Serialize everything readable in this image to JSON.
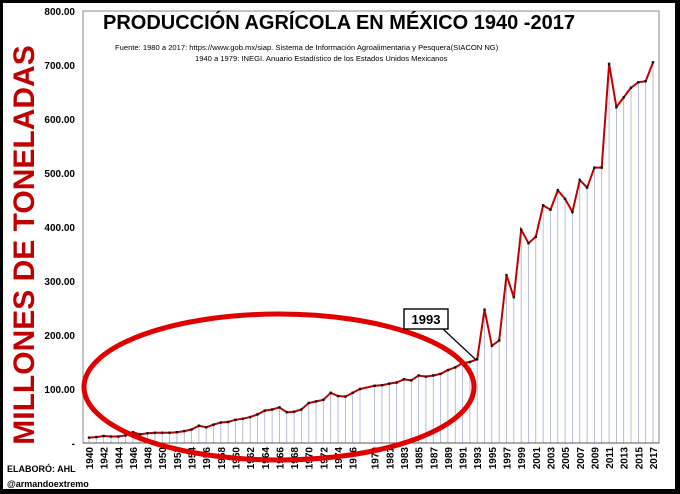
{
  "chart_data": {
    "type": "line",
    "title": "PRODUCCIÓN AGRÍCOLA EN MÉXICO 1940 -2017",
    "source_line1": "Fuente:  1980 a 2017: https://www.gob.mx/siap.  Sistema de Información Agroalimentaria y Pesquera(SIACON NG)",
    "source_line2": "1940 a 1979: INEGI. Anuario Estadístico de los Estados Unidos Mexicanos",
    "ylabel": "MILLONES DE TONELADAS",
    "xlabel": "",
    "ylim": [
      0,
      800
    ],
    "ytick_labels": [
      "-",
      "100.00",
      "200.00",
      "300.00",
      "400.00",
      "500.00",
      "600.00",
      "700.00",
      "800.00"
    ],
    "xtick_labels": [
      "1940",
      "1942",
      "1944",
      "1946",
      "1948",
      "1950",
      "1952",
      "1954",
      "1956",
      "1958",
      "1960",
      "1962",
      "1964",
      "1966",
      "1968",
      "1970",
      "1972",
      "1974",
      "1976",
      "1979",
      "1981",
      "1983",
      "1985",
      "1987",
      "1989",
      "1991",
      "1993",
      "1995",
      "1997",
      "1999",
      "2001",
      "2003",
      "2005",
      "2007",
      "2009",
      "2011",
      "2013",
      "2015",
      "2017"
    ],
    "series": [
      {
        "name": "Producción agrícola",
        "color": "#c00000",
        "x": [
          1940,
          1941,
          1942,
          1943,
          1944,
          1945,
          1946,
          1947,
          1948,
          1949,
          1950,
          1951,
          1952,
          1953,
          1954,
          1955,
          1956,
          1957,
          1958,
          1959,
          1960,
          1961,
          1962,
          1963,
          1964,
          1965,
          1966,
          1967,
          1968,
          1969,
          1970,
          1971,
          1972,
          1973,
          1974,
          1975,
          1976,
          1977,
          1979,
          1980,
          1981,
          1982,
          1983,
          1984,
          1985,
          1986,
          1987,
          1988,
          1989,
          1990,
          1991,
          1992,
          1993,
          1994,
          1995,
          1996,
          1997,
          1998,
          1999,
          2000,
          2001,
          2002,
          2003,
          2004,
          2005,
          2006,
          2007,
          2008,
          2009,
          2010,
          2011,
          2012,
          2013,
          2014,
          2015,
          2016,
          2017
        ],
        "values": [
          10,
          11,
          13,
          12,
          12,
          14,
          20,
          16,
          18,
          19,
          19,
          19,
          20,
          22,
          25,
          32,
          29,
          34,
          38,
          39,
          43,
          45,
          48,
          53,
          60,
          62,
          66,
          57,
          58,
          62,
          74,
          77,
          80,
          93,
          87,
          86,
          93,
          100,
          106,
          107,
          110,
          112,
          118,
          116,
          125,
          123,
          125,
          128,
          135,
          140,
          148,
          150,
          155,
          247,
          180,
          190,
          311,
          270,
          395,
          370,
          382,
          440,
          432,
          468,
          452,
          428,
          487,
          473,
          510,
          510,
          702,
          622,
          640,
          658,
          668,
          670,
          705
        ]
      }
    ],
    "annotations": [
      {
        "text": "1993",
        "x": 1993,
        "y": 150
      }
    ]
  },
  "credits": {
    "line1": "ELABORÓ: AHL",
    "line2": "@armandoextremo"
  }
}
